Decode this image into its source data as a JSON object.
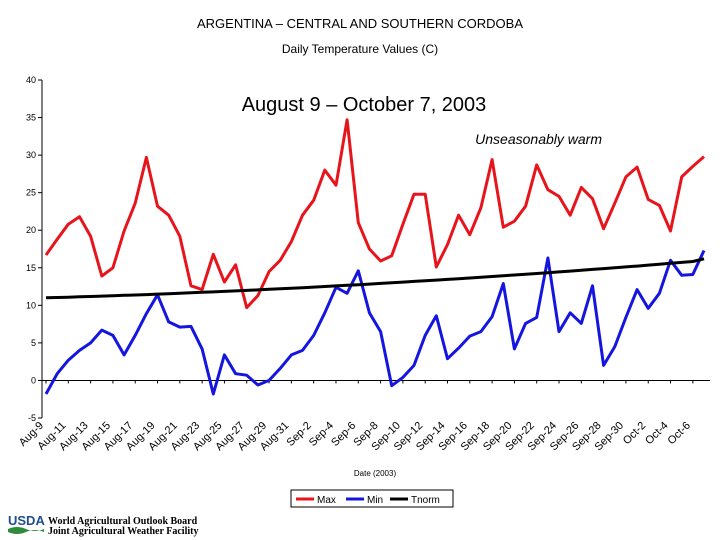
{
  "chart_data": {
    "type": "line",
    "title": "ARGENTINA – CENTRAL AND SOUTHERN CORDOBA",
    "subtitle": "Daily Temperature Values (C)",
    "annotation_period": "August 9 – October 7, 2003",
    "annotation_note": "Unseasonably warm",
    "xlabel": "Date (2003)",
    "ylabel": "",
    "ylim": [
      -5,
      40
    ],
    "yticks": [
      -5,
      0,
      5,
      10,
      15,
      20,
      25,
      30,
      35,
      40
    ],
    "grid": false,
    "legend_position": "bottom",
    "x": [
      "Aug-9",
      "Aug-10",
      "Aug-11",
      "Aug-12",
      "Aug-13",
      "Aug-14",
      "Aug-15",
      "Aug-16",
      "Aug-17",
      "Aug-18",
      "Aug-19",
      "Aug-20",
      "Aug-21",
      "Aug-22",
      "Aug-23",
      "Aug-24",
      "Aug-25",
      "Aug-26",
      "Aug-27",
      "Aug-28",
      "Aug-29",
      "Aug-30",
      "Aug-31",
      "Sep-1",
      "Sep-2",
      "Sep-3",
      "Sep-4",
      "Sep-5",
      "Sep-6",
      "Sep-7",
      "Sep-8",
      "Sep-9",
      "Sep-10",
      "Sep-11",
      "Sep-12",
      "Sep-13",
      "Sep-14",
      "Sep-15",
      "Sep-16",
      "Sep-17",
      "Sep-18",
      "Sep-19",
      "Sep-20",
      "Sep-21",
      "Sep-22",
      "Sep-23",
      "Sep-24",
      "Sep-25",
      "Sep-26",
      "Sep-27",
      "Sep-28",
      "Sep-29",
      "Sep-30",
      "Oct-1",
      "Oct-2",
      "Oct-3",
      "Oct-4",
      "Oct-5",
      "Oct-6",
      "Oct-7"
    ],
    "x_tick_labels": [
      "Aug-9",
      "Aug-11",
      "Aug-13",
      "Aug-15",
      "Aug-17",
      "Aug-19",
      "Aug-21",
      "Aug-23",
      "Aug-25",
      "Aug-27",
      "Aug-29",
      "Aug-31",
      "Sep-2",
      "Sep-4",
      "Sep-6",
      "Sep-8",
      "Sep-10",
      "Sep-12",
      "Sep-14",
      "Sep-16",
      "Sep-18",
      "Sep-20",
      "Sep-22",
      "Sep-24",
      "Sep-26",
      "Sep-28",
      "Sep-30",
      "Oct-2",
      "Oct-4",
      "Oct-6"
    ],
    "series": [
      {
        "name": "Max",
        "color": "#e8141b",
        "values": [
          16.7,
          18.8,
          20.8,
          21.8,
          19.2,
          13.9,
          15.0,
          19.9,
          23.6,
          29.7,
          23.2,
          22.0,
          19.2,
          12.6,
          12.1,
          16.8,
          13.1,
          15.4,
          9.7,
          11.3,
          14.5,
          16.0,
          18.5,
          22.0,
          24.0,
          28.0,
          26.0,
          34.7,
          21.0,
          17.5,
          15.9,
          16.6,
          20.8,
          24.8,
          24.8,
          15.1,
          18.1,
          22.0,
          19.4,
          23.0,
          29.4,
          20.4,
          21.2,
          23.2,
          28.7,
          25.4,
          24.5,
          22.0,
          25.7,
          24.2,
          20.2,
          23.6,
          27.1,
          28.4,
          24.1,
          23.3,
          19.9,
          27.1,
          28.5,
          29.8
        ]
      },
      {
        "name": "Min",
        "color": "#1515e0",
        "values": [
          -1.8,
          0.9,
          2.7,
          4.0,
          5.0,
          6.7,
          6.0,
          3.4,
          6.0,
          8.9,
          11.4,
          7.8,
          7.1,
          7.2,
          4.2,
          -1.8,
          3.4,
          0.9,
          0.7,
          -0.6,
          0.0,
          1.6,
          3.4,
          4.0,
          6.0,
          9.0,
          12.4,
          11.6,
          14.6,
          9.0,
          6.5,
          -0.7,
          0.4,
          2.0,
          6.0,
          8.6,
          2.9,
          4.3,
          5.9,
          6.5,
          8.5,
          12.9,
          4.2,
          7.6,
          8.4,
          16.3,
          6.5,
          9.0,
          7.6,
          12.6,
          2.0,
          4.5,
          8.4,
          12.1,
          9.6,
          11.6,
          16.0,
          14.0,
          14.1,
          17.3
        ]
      },
      {
        "name": "Tnorm",
        "color": "#000000",
        "values": [
          11.0,
          11.04,
          11.08,
          11.13,
          11.18,
          11.23,
          11.28,
          11.33,
          11.38,
          11.43,
          11.49,
          11.55,
          11.61,
          11.67,
          11.73,
          11.79,
          11.86,
          11.92,
          11.99,
          12.06,
          12.13,
          12.2,
          12.28,
          12.35,
          12.43,
          12.51,
          12.59,
          12.67,
          12.75,
          12.83,
          12.92,
          13.0,
          13.09,
          13.18,
          13.27,
          13.36,
          13.45,
          13.55,
          13.64,
          13.74,
          13.84,
          13.94,
          14.04,
          14.14,
          14.24,
          14.35,
          14.45,
          14.56,
          14.67,
          14.78,
          14.89,
          15.0,
          15.12,
          15.23,
          15.35,
          15.47,
          15.59,
          15.71,
          15.84,
          16.2
        ]
      }
    ]
  },
  "footer": {
    "logo_text": "USDA",
    "board_line1": "World Agricultural Outlook Board",
    "board_line2": "Joint Agricultural Weather Facility"
  }
}
